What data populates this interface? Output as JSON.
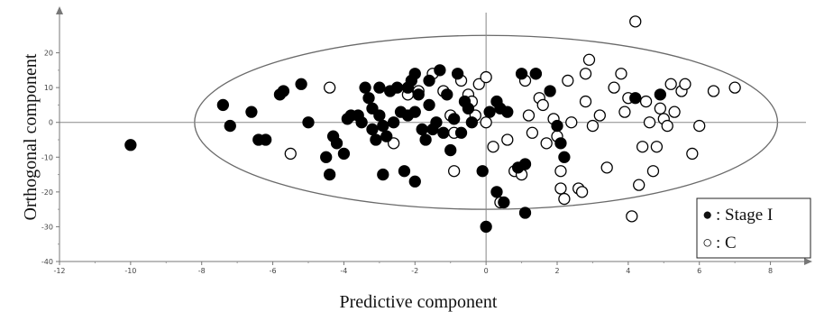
{
  "chart_data": {
    "type": "scatter",
    "title": "",
    "xlabel": "Predictive component",
    "ylabel": "Orthogonal component",
    "xlim": [
      -12,
      9
    ],
    "ylim": [
      -40,
      30
    ],
    "xticks": [
      -12,
      -10,
      -8,
      -6,
      -4,
      -2,
      0,
      2,
      4,
      6,
      8
    ],
    "yticks": [
      -40,
      -30,
      -20,
      -10,
      0,
      10,
      20
    ],
    "grid": false,
    "reference_lines": {
      "x": 0,
      "y": 0
    },
    "confidence_ellipse": {
      "cx": 0,
      "cy": 0,
      "rx": 8.2,
      "ry": 25
    },
    "legend": {
      "position": "bottom-right",
      "entries": [
        {
          "marker": "●",
          "label": ": Stage I"
        },
        {
          "marker": "○",
          "label": ": C"
        }
      ]
    },
    "series": [
      {
        "name": "Stage I",
        "marker": "filled-circle",
        "color": "#000000",
        "points": [
          [
            -10.0,
            -6.5
          ],
          [
            -7.4,
            5
          ],
          [
            -7.2,
            -1
          ],
          [
            -6.6,
            3
          ],
          [
            -6.4,
            -5
          ],
          [
            -6.2,
            -5
          ],
          [
            -5.8,
            8
          ],
          [
            -5.7,
            9
          ],
          [
            -5.2,
            11
          ],
          [
            -5.0,
            0
          ],
          [
            -4.5,
            -10
          ],
          [
            -4.4,
            -15
          ],
          [
            -4.3,
            -4
          ],
          [
            -4.2,
            -6
          ],
          [
            -4.0,
            -9
          ],
          [
            -3.9,
            1
          ],
          [
            -3.8,
            2
          ],
          [
            -3.6,
            2
          ],
          [
            -3.5,
            0
          ],
          [
            -3.4,
            10
          ],
          [
            -3.3,
            7
          ],
          [
            -3.2,
            -2
          ],
          [
            -3.2,
            4
          ],
          [
            -3.1,
            -5
          ],
          [
            -3.0,
            10
          ],
          [
            -3.0,
            2
          ],
          [
            -2.9,
            -1
          ],
          [
            -2.9,
            -15
          ],
          [
            -2.8,
            -4
          ],
          [
            -2.7,
            9
          ],
          [
            -2.6,
            0
          ],
          [
            -2.5,
            10
          ],
          [
            -2.4,
            3
          ],
          [
            -2.3,
            -14
          ],
          [
            -2.2,
            10
          ],
          [
            -2.2,
            2
          ],
          [
            -2.1,
            12
          ],
          [
            -2.0,
            14
          ],
          [
            -2.0,
            3
          ],
          [
            -2.0,
            -17
          ],
          [
            -1.9,
            8
          ],
          [
            -1.8,
            -2
          ],
          [
            -1.7,
            -5
          ],
          [
            -1.6,
            12
          ],
          [
            -1.6,
            5
          ],
          [
            -1.5,
            -2
          ],
          [
            -1.4,
            0
          ],
          [
            -1.3,
            15
          ],
          [
            -1.2,
            -3
          ],
          [
            -1.1,
            8
          ],
          [
            -1.0,
            -8
          ],
          [
            -0.9,
            1
          ],
          [
            -0.8,
            14
          ],
          [
            -0.7,
            -3
          ],
          [
            -0.6,
            6
          ],
          [
            -0.5,
            4
          ],
          [
            -0.4,
            0
          ],
          [
            -0.1,
            -14
          ],
          [
            0.0,
            -30
          ],
          [
            0.1,
            3
          ],
          [
            0.3,
            6
          ],
          [
            0.3,
            -20
          ],
          [
            0.4,
            4
          ],
          [
            0.5,
            -23
          ],
          [
            0.6,
            3
          ],
          [
            0.9,
            -13
          ],
          [
            1.0,
            14
          ],
          [
            1.1,
            -12
          ],
          [
            1.1,
            -26
          ],
          [
            1.4,
            14
          ],
          [
            1.8,
            9
          ],
          [
            2.0,
            -1
          ],
          [
            2.1,
            -6
          ],
          [
            2.2,
            -10
          ],
          [
            4.2,
            7
          ],
          [
            4.9,
            8
          ]
        ]
      },
      {
        "name": "C",
        "marker": "open-circle",
        "color": "#000000",
        "points": [
          [
            -5.5,
            -9
          ],
          [
            -4.4,
            10
          ],
          [
            -2.6,
            -6
          ],
          [
            -2.2,
            8
          ],
          [
            -1.9,
            9
          ],
          [
            -1.5,
            14
          ],
          [
            -1.2,
            9
          ],
          [
            -1.0,
            2
          ],
          [
            -0.9,
            -3
          ],
          [
            -0.9,
            -14
          ],
          [
            -0.7,
            12
          ],
          [
            -0.5,
            8
          ],
          [
            -0.4,
            6
          ],
          [
            -0.3,
            2
          ],
          [
            -0.2,
            11
          ],
          [
            0.0,
            13
          ],
          [
            0.0,
            0
          ],
          [
            0.2,
            -7
          ],
          [
            0.4,
            -23
          ],
          [
            0.6,
            -5
          ],
          [
            0.8,
            -14
          ],
          [
            1.0,
            -15
          ],
          [
            1.1,
            12
          ],
          [
            1.2,
            2
          ],
          [
            1.3,
            -3
          ],
          [
            1.4,
            14
          ],
          [
            1.5,
            7
          ],
          [
            1.6,
            5
          ],
          [
            1.7,
            -6
          ],
          [
            1.9,
            1
          ],
          [
            2.0,
            -4
          ],
          [
            2.1,
            -14
          ],
          [
            2.1,
            -19
          ],
          [
            2.2,
            -22
          ],
          [
            2.3,
            12
          ],
          [
            2.4,
            0
          ],
          [
            2.6,
            -19
          ],
          [
            2.7,
            -20
          ],
          [
            2.8,
            14
          ],
          [
            2.8,
            6
          ],
          [
            2.9,
            18
          ],
          [
            3.0,
            -1
          ],
          [
            3.2,
            2
          ],
          [
            3.4,
            -13
          ],
          [
            3.6,
            10
          ],
          [
            3.8,
            14
          ],
          [
            3.9,
            3
          ],
          [
            4.0,
            7
          ],
          [
            4.1,
            -27
          ],
          [
            4.2,
            29
          ],
          [
            4.3,
            -18
          ],
          [
            4.4,
            -7
          ],
          [
            4.5,
            6
          ],
          [
            4.6,
            0
          ],
          [
            4.7,
            -14
          ],
          [
            4.8,
            -7
          ],
          [
            4.9,
            4
          ],
          [
            5.0,
            1
          ],
          [
            5.1,
            -1
          ],
          [
            5.2,
            11
          ],
          [
            5.3,
            3
          ],
          [
            5.5,
            9
          ],
          [
            5.6,
            11
          ],
          [
            5.8,
            -9
          ],
          [
            6.0,
            -1
          ],
          [
            6.4,
            9
          ],
          [
            7.0,
            10
          ]
        ]
      }
    ]
  }
}
